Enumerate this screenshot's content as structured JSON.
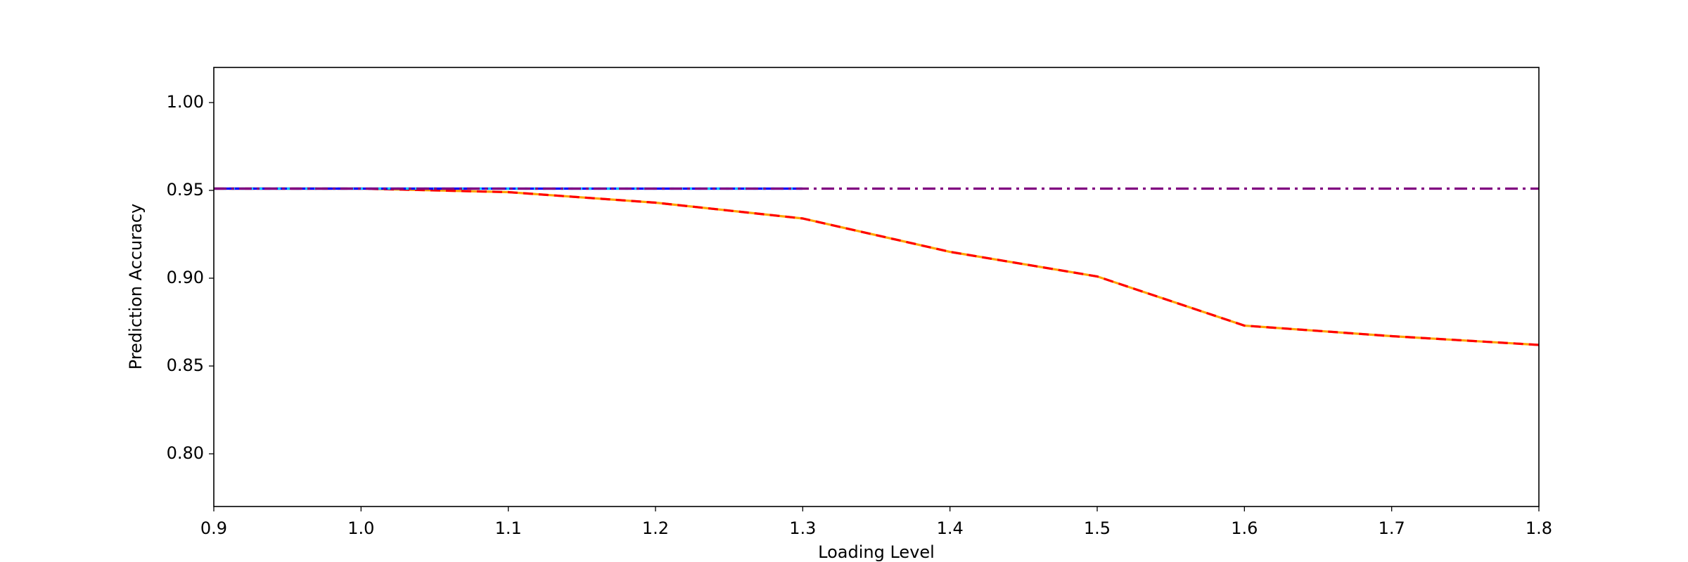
{
  "chart_data": {
    "type": "line",
    "xlabel": "Loading Level",
    "ylabel": "Prediction Accuracy",
    "xlim": [
      0.9,
      1.8
    ],
    "ylim": [
      0.77,
      1.02
    ],
    "xticks": [
      {
        "value": 0.9,
        "label": "0.9"
      },
      {
        "value": 1.0,
        "label": "1.0"
      },
      {
        "value": 1.1,
        "label": "1.1"
      },
      {
        "value": 1.2,
        "label": "1.2"
      },
      {
        "value": 1.3,
        "label": "1.3"
      },
      {
        "value": 1.4,
        "label": "1.4"
      },
      {
        "value": 1.5,
        "label": "1.5"
      },
      {
        "value": 1.6,
        "label": "1.6"
      },
      {
        "value": 1.7,
        "label": "1.7"
      },
      {
        "value": 1.8,
        "label": "1.8"
      }
    ],
    "yticks": [
      {
        "value": 0.8,
        "label": "0.80"
      },
      {
        "value": 0.85,
        "label": "0.85"
      },
      {
        "value": 0.9,
        "label": "0.90"
      },
      {
        "value": 0.95,
        "label": "0.95"
      },
      {
        "value": 1.0,
        "label": "1.00"
      }
    ],
    "grid": false,
    "series": [
      {
        "color": "#ffa500",
        "linestyle": "solid",
        "x": [
          0.9,
          1.0,
          1.1,
          1.2,
          1.3,
          1.4,
          1.5,
          1.6,
          1.7,
          1.8
        ],
        "values": [
          0.951,
          0.951,
          0.949,
          0.943,
          0.934,
          0.915,
          0.901,
          0.873,
          0.867,
          0.862
        ]
      },
      {
        "color": "#ff0000",
        "linestyle": "dashed",
        "x": [
          0.9,
          1.0,
          1.1,
          1.2,
          1.3,
          1.4,
          1.5,
          1.6,
          1.7,
          1.8
        ],
        "values": [
          0.951,
          0.951,
          0.949,
          0.943,
          0.934,
          0.915,
          0.901,
          0.873,
          0.867,
          0.862
        ]
      },
      {
        "color": "#0000ff",
        "linestyle": "solid",
        "x": [
          0.9,
          1.0,
          1.1,
          1.2,
          1.3
        ],
        "values": [
          0.951,
          0.951,
          0.951,
          0.951,
          0.951
        ]
      },
      {
        "color": "#00bfff",
        "linestyle": "dotted",
        "x": [
          0.9,
          1.0,
          1.1,
          1.2,
          1.3
        ],
        "values": [
          0.951,
          0.951,
          0.951,
          0.951,
          0.951
        ]
      },
      {
        "color": "#800080",
        "linestyle": "dashdot",
        "x": [
          0.9,
          1.8
        ],
        "values": [
          0.951,
          0.951
        ]
      }
    ]
  }
}
